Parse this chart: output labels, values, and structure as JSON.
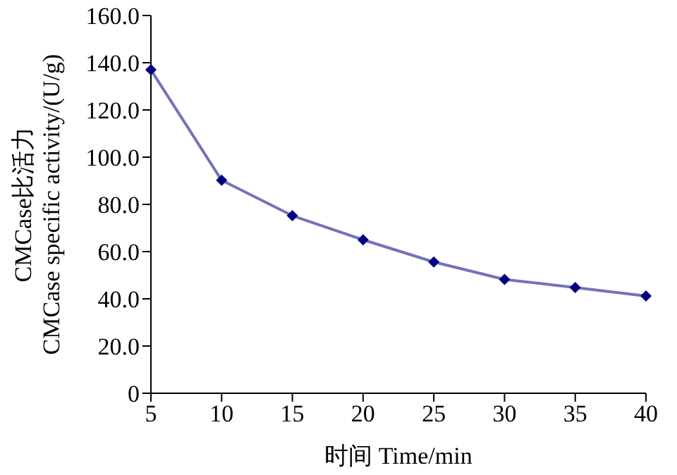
{
  "chart_data": {
    "type": "line",
    "xlabel": "时间  Time/min",
    "ylabel": "CMCase比活力\nCMCase specific activity/(U/g)",
    "categories": [
      "5",
      "10",
      "15",
      "20",
      "25",
      "30",
      "35",
      "40"
    ],
    "series": [
      {
        "color": "#000080",
        "values": [
          137,
          90.2,
          75.2,
          65,
          55.6,
          48.2,
          44.8,
          41.2
        ]
      }
    ],
    "ylim": [
      0,
      160
    ],
    "yticks": [
      0,
      {
        "value": 20,
        "label": "20.0"
      },
      {
        "value": 40,
        "label": "40.0"
      },
      {
        "value": 60,
        "label": "60.0"
      },
      {
        "value": 80,
        "label": "80.0"
      },
      {
        "value": 100,
        "label": "100.0"
      },
      {
        "value": 120,
        "label": "120.0"
      },
      {
        "value": 140,
        "label": "140.0"
      },
      {
        "value": 160,
        "label": "160.0"
      }
    ],
    "grid": false,
    "legend": false,
    "marker": "diamond",
    "line_style": "solid"
  }
}
